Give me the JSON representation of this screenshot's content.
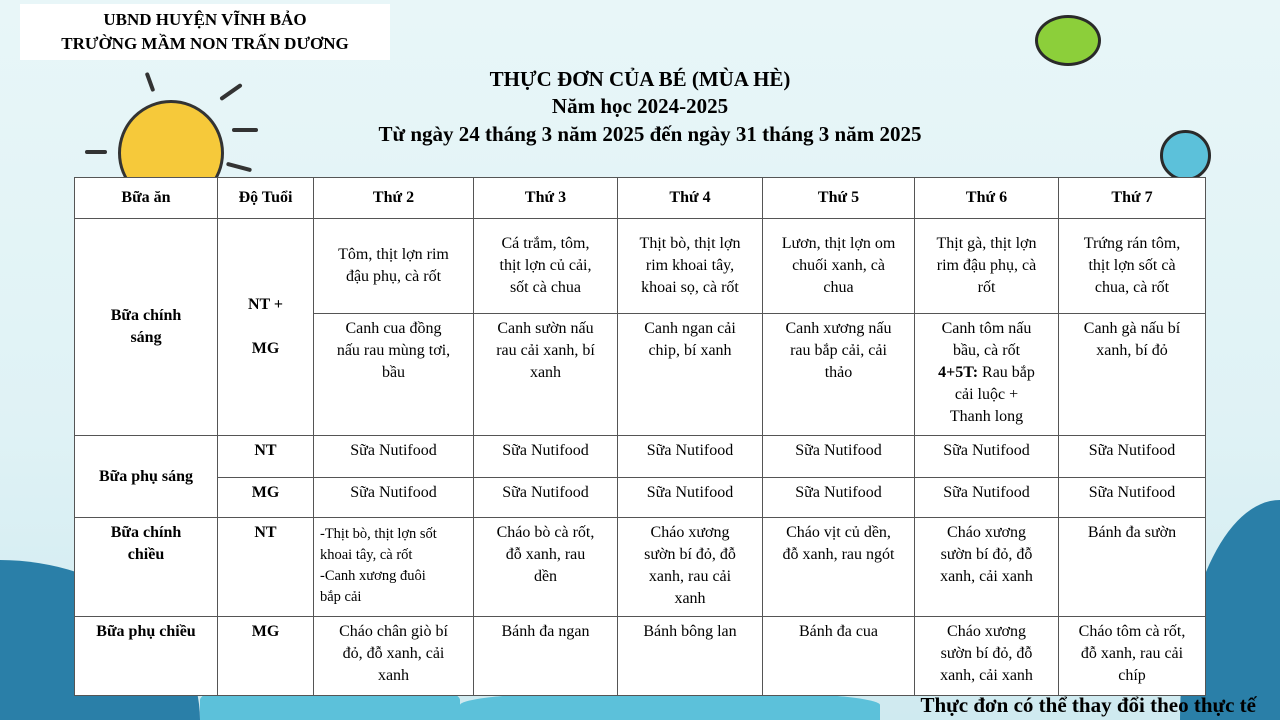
{
  "header": {
    "line1": "UBND HUYỆN VĨNH BẢO",
    "line2": "TRƯỜNG MẦM NON TRẤN DƯƠNG"
  },
  "title": {
    "main": "THỰC ĐƠN CỦA BÉ (MÙA HÈ)",
    "year": "Năm học 2024-2025",
    "range": "Từ ngày 24 tháng 3 năm 2025 đến ngày 31 tháng 3 năm 2025"
  },
  "table": {
    "headers": [
      "Bữa ăn",
      "Độ Tuổi",
      "Thứ 2",
      "Thứ 3",
      "Thứ 4",
      "Thứ 5",
      "Thứ 6",
      "Thứ 7"
    ],
    "r1": {
      "meal": "Bữa chính\nsáng",
      "age": "NT +\n\nMG",
      "main": [
        "Tôm, thịt lợn rim\nđậu phụ, cà rốt",
        "Cá trắm, tôm,\nthịt lợn củ cải,\nsốt cà chua",
        "Thịt bò, thịt lợn\nrim khoai tây,\nkhoai sọ, cà rốt",
        "Lươn, thịt lợn om\nchuối xanh, cà\nchua",
        "Thịt gà, thịt lợn\nrim đậu phụ, cà\nrốt",
        "Trứng rán tôm,\nthịt lợn sốt cà\nchua, cà rốt"
      ],
      "soup": [
        "Canh cua đồng\nnấu rau mùng tơi,\nbầu",
        "Canh sườn nấu\nrau cải xanh, bí\nxanh",
        "Canh ngan cải\nchip, bí xanh",
        "Canh xương nấu\nrau bắp cải, cải\nthảo",
        "Canh tôm nấu\nbầu, cà rốt",
        "Canh gà nấu bí\nxanh, bí đỏ"
      ],
      "soup6_extra_label": "4+5T:",
      "soup6_extra": " Rau bắp\ncải luộc +\nThanh long"
    },
    "r2": {
      "meal": "Bữa phụ sáng",
      "ages": [
        "NT",
        "MG"
      ],
      "nt": [
        "Sữa Nutifood",
        "Sữa Nutifood",
        "Sữa Nutifood",
        "Sữa Nutifood",
        "Sữa Nutifood",
        "Sữa Nutifood"
      ],
      "mg": [
        "Sữa Nutifood",
        "Sữa Nutifood",
        "Sữa Nutifood",
        "Sữa Nutifood",
        "Sữa Nutifood",
        "Sữa Nutifood"
      ]
    },
    "r3": {
      "meal": "Bữa chính\nchiều",
      "age": "NT",
      "items": [
        "-Thịt bò, thịt lợn sốt\nkhoai tây, cà rốt\n-Canh xương đuôi\nbắp cải",
        "Cháo bò cà rốt,\nđỗ xanh, rau\ndền",
        "Cháo xương\nsườn bí đỏ, đỗ\nxanh, rau cải\nxanh",
        "Cháo vịt củ dền,\nđỗ xanh, rau ngót",
        "Cháo xương\nsườn bí đỏ, đỗ\nxanh, cải xanh",
        "Bánh đa sườn"
      ]
    },
    "r4": {
      "meal": "Bữa phụ chiều",
      "age": "MG",
      "items": [
        "Cháo chân giò bí\nđỏ, đỗ xanh, cải\nxanh",
        "Bánh đa ngan",
        "Bánh bông lan",
        "Bánh đa cua",
        "Cháo xương\nsườn bí đỏ, đỗ\nxanh, cải xanh",
        "Cháo tôm cà rốt,\nđỗ xanh, rau cải\nchíp"
      ]
    }
  },
  "note": "Thực đơn có thể thay đổi theo thực tế",
  "colors": {
    "sun": "#f6c93a",
    "cloud_dark": "#2a7fa8",
    "cloud_light": "#5cc1da"
  }
}
